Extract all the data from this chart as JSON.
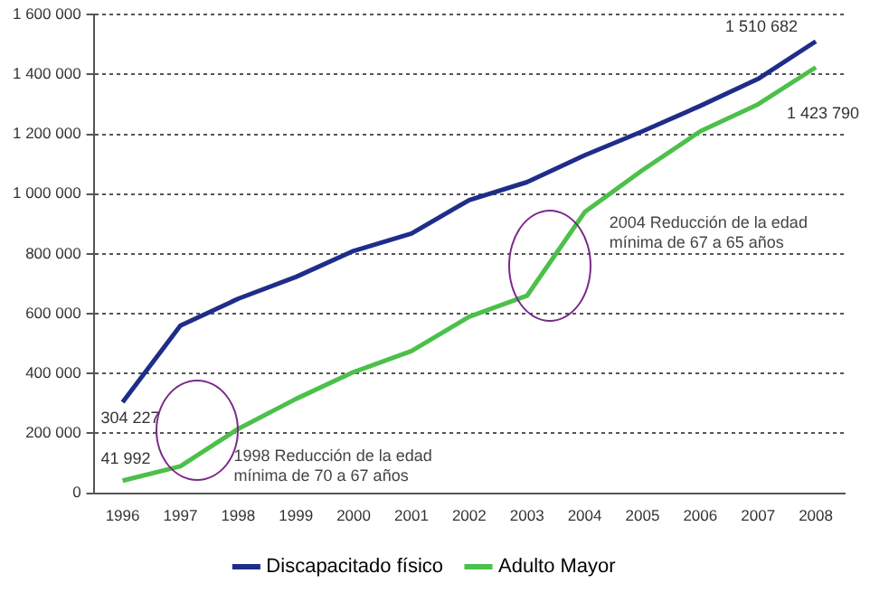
{
  "chart_data": {
    "type": "line",
    "categories": [
      "1996",
      "1997",
      "1998",
      "1999",
      "2000",
      "2001",
      "2002",
      "2003",
      "2004",
      "2005",
      "2006",
      "2007",
      "2008"
    ],
    "series": [
      {
        "name": "Discapacitado físico",
        "color": "#1f2d8a",
        "values": [
          304227,
          560000,
          650000,
          723000,
          810000,
          868000,
          980000,
          1040000,
          1130000,
          1210000,
          1295000,
          1385000,
          1510682
        ],
        "value_labels": [
          "304 227",
          null,
          null,
          null,
          null,
          null,
          null,
          null,
          null,
          null,
          null,
          null,
          "1 510 682"
        ]
      },
      {
        "name": "Adulto Mayor",
        "color": "#4cc04a",
        "values": [
          41992,
          90000,
          215000,
          315000,
          405000,
          475000,
          590000,
          660000,
          940000,
          1080000,
          1210000,
          1300000,
          1423790
        ],
        "value_labels": [
          "41 992",
          null,
          null,
          null,
          null,
          null,
          null,
          null,
          null,
          null,
          null,
          null,
          "1 423 790"
        ]
      }
    ],
    "ylim": [
      0,
      1600000
    ],
    "yticks": [
      {
        "value": 0,
        "label": "0"
      },
      {
        "value": 200000,
        "label": "200 000"
      },
      {
        "value": 400000,
        "label": "400 000"
      },
      {
        "value": 600000,
        "label": "600 000"
      },
      {
        "value": 800000,
        "label": "800 000"
      },
      {
        "value": 1000000,
        "label": "1 000 000"
      },
      {
        "value": 1200000,
        "label": "1 200 000"
      },
      {
        "value": 1400000,
        "label": "1 400 000"
      },
      {
        "value": 1600000,
        "label": "1 600 000"
      }
    ],
    "grid": "y",
    "legend": "bottom",
    "marker": "none",
    "line_style": "solid",
    "annotations": [
      "1998 Reducción de la edad mínima de 70 a 67 años",
      "2004 Reducción de la edad mínima de 67 a 65 años"
    ]
  }
}
